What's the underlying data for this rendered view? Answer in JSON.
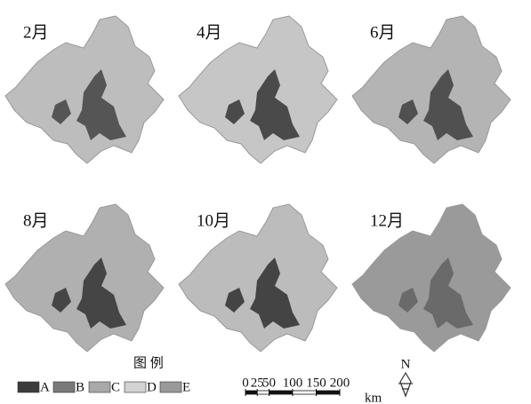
{
  "panels": [
    "2月",
    "4月",
    "6月",
    "8月",
    "10月",
    "12月"
  ],
  "legend": {
    "title": "图 例",
    "items": [
      {
        "label": "A",
        "color": "#3c3c3c"
      },
      {
        "label": "B",
        "color": "#7a7a7a"
      },
      {
        "label": "C",
        "color": "#a9a9a9"
      },
      {
        "label": "D",
        "color": "#d2d2d2"
      },
      {
        "label": "E",
        "color": "#999999"
      }
    ]
  },
  "scale": {
    "ticks": [
      0,
      25,
      50,
      100,
      150,
      200
    ],
    "unit": "km"
  },
  "north": "N"
}
